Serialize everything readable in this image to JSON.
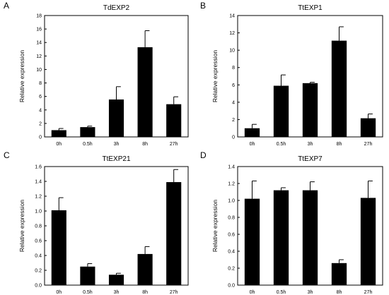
{
  "chart_data": [
    {
      "panel": "A",
      "type": "bar",
      "title": "TdEXP2",
      "ylabel": "Relative expression",
      "xlabel": "",
      "categories": [
        "0h",
        "0.5h",
        "3h",
        "8h",
        "27h"
      ],
      "values": [
        1.0,
        1.45,
        5.55,
        13.3,
        4.85
      ],
      "errors": [
        0.25,
        0.15,
        1.9,
        2.45,
        1.1
      ],
      "ylim": [
        0,
        18
      ],
      "yticks": [
        "0",
        "2",
        "4",
        "6",
        "8",
        "10",
        "12",
        "14",
        "16",
        "18"
      ],
      "ytick_values": [
        0,
        2,
        4,
        6,
        8,
        10,
        12,
        14,
        16,
        18
      ]
    },
    {
      "panel": "B",
      "type": "bar",
      "title": "TtEXP1",
      "ylabel": "Relative expression",
      "xlabel": "",
      "categories": [
        "0h",
        "0.5h",
        "3h",
        "8h",
        "27h"
      ],
      "values": [
        1.0,
        5.9,
        6.2,
        11.1,
        2.15
      ],
      "errors": [
        0.45,
        1.25,
        0.1,
        1.6,
        0.5
      ],
      "ylim": [
        0,
        14
      ],
      "yticks": [
        "0",
        "2",
        "4",
        "6",
        "8",
        "10",
        "12",
        "14"
      ],
      "ytick_values": [
        0,
        2,
        4,
        6,
        8,
        10,
        12,
        14
      ]
    },
    {
      "panel": "C",
      "type": "bar",
      "title": "TtEXP21",
      "ylabel": "Relative expression",
      "xlabel": "",
      "categories": [
        "0h",
        "0.5h",
        "3h",
        "8h",
        "27h"
      ],
      "values": [
        1.01,
        0.25,
        0.14,
        0.42,
        1.39
      ],
      "errors": [
        0.17,
        0.04,
        0.02,
        0.1,
        0.17
      ],
      "ylim": [
        0,
        1.6
      ],
      "yticks": [
        "0.0",
        "0.2",
        "0.4",
        "0.6",
        "0.8",
        "1.0",
        "1.2",
        "1.4",
        "1.6"
      ],
      "ytick_values": [
        0,
        0.2,
        0.4,
        0.6,
        0.8,
        1.0,
        1.2,
        1.4,
        1.6
      ]
    },
    {
      "panel": "D",
      "type": "bar",
      "title": "TtEXP7",
      "ylabel": "Relative expression",
      "xlabel": "",
      "categories": [
        "0h",
        "0.5h",
        "3h",
        "8h",
        "27h"
      ],
      "values": [
        1.02,
        1.12,
        1.12,
        0.26,
        1.03
      ],
      "errors": [
        0.21,
        0.03,
        0.1,
        0.04,
        0.2
      ],
      "ylim": [
        0,
        1.4
      ],
      "yticks": [
        "0.0",
        "0.2",
        "0.4",
        "0.6",
        "0.8",
        "1.0",
        "1.2",
        "1.4"
      ],
      "ytick_values": [
        0,
        0.2,
        0.4,
        0.6,
        0.8,
        1.0,
        1.2,
        1.4
      ]
    }
  ]
}
